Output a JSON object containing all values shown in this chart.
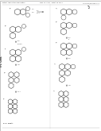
{
  "page_bg": "#f5f5f3",
  "content_bg": "#ffffff",
  "border_color": "#bbbbbb",
  "text_color": "#444444",
  "dark_text": "#222222",
  "gray_text": "#888888",
  "structure_color": "#555555",
  "header_line_color": "#aaaaaa",
  "fig_area_bg": "#eeeeec",
  "header_top": "Patent Application Publication",
  "header_mid": "May 11, 2017  Sheet 46 of 51",
  "header_right": "US 2017/0096344 A1",
  "side_label": "S-1. Cont.",
  "overall_alpha": 0.92
}
